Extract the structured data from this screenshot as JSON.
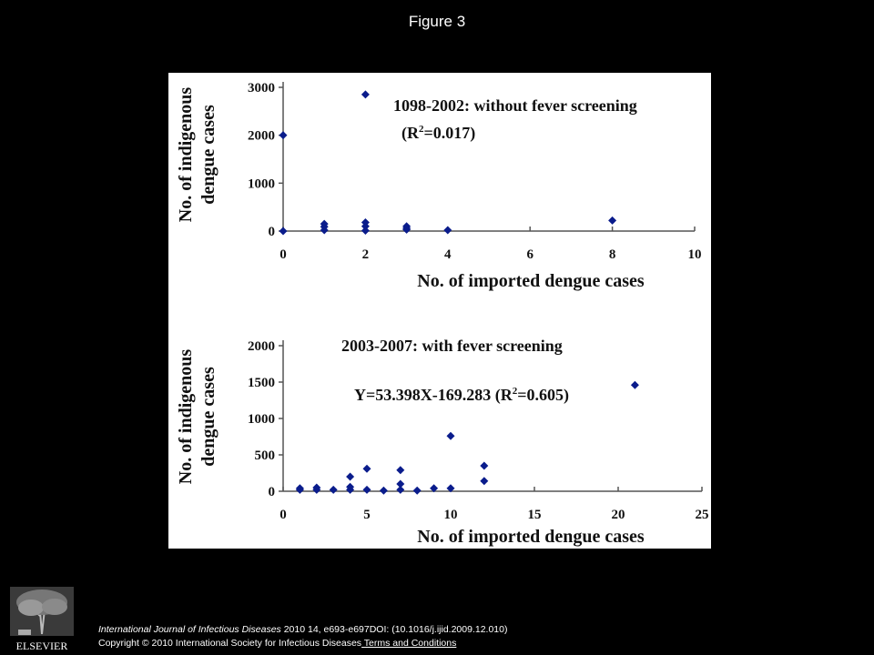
{
  "slide_title": "Figure 3",
  "citation": {
    "journal": "International Journal of Infectious Diseases",
    "details": " 2010 14, e693-e697DOI: (10.1016/j.ijid.2009.12.010)",
    "copyright": "Copyright © 2010 International Society for Infectious Diseases",
    "terms_link": " Terms and Conditions"
  },
  "publisher_logo_text": "ELSEVIER",
  "colors": {
    "background": "#000000",
    "panel": "#ffffff",
    "marker": "#0a1c8c"
  },
  "chart_data": [
    {
      "type": "scatter",
      "title": "1098-2002: without fever screening",
      "equation_prefix": "(R",
      "equation_sup": "2",
      "equation_suffix": "=0.017)",
      "xlabel": "No. of imported dengue cases",
      "ylabel_line1": "No. of indigenous",
      "ylabel_line2": "dengue cases",
      "xlim": [
        0,
        10
      ],
      "ylim": [
        0,
        3000
      ],
      "xticks": [
        0,
        2,
        4,
        6,
        8,
        10
      ],
      "yticks": [
        0,
        1000,
        2000,
        3000
      ],
      "marker": "diamond",
      "grid": false,
      "points": [
        {
          "x": 0,
          "y": 2000
        },
        {
          "x": 0,
          "y": 0
        },
        {
          "x": 1,
          "y": 150
        },
        {
          "x": 1,
          "y": 90
        },
        {
          "x": 1,
          "y": 20
        },
        {
          "x": 2,
          "y": 2850
        },
        {
          "x": 2,
          "y": 180
        },
        {
          "x": 2,
          "y": 100
        },
        {
          "x": 2,
          "y": 10
        },
        {
          "x": 3,
          "y": 100
        },
        {
          "x": 3,
          "y": 60
        },
        {
          "x": 3,
          "y": 30
        },
        {
          "x": 4,
          "y": 20
        },
        {
          "x": 8,
          "y": 220
        }
      ]
    },
    {
      "type": "scatter",
      "title": "2003-2007: with fever screening",
      "equation_prefix": "Y=53.398X-169.283 (R",
      "equation_sup": "2",
      "equation_suffix": "=0.605)",
      "xlabel": "No. of imported dengue cases",
      "ylabel_line1": "No. of indigenous",
      "ylabel_line2": "dengue cases",
      "xlim": [
        0,
        25
      ],
      "ylim": [
        0,
        2000
      ],
      "xticks": [
        0,
        5,
        10,
        15,
        20,
        25
      ],
      "yticks": [
        0,
        500,
        1000,
        1500,
        2000
      ],
      "marker": "diamond",
      "grid": false,
      "points": [
        {
          "x": 1,
          "y": 40
        },
        {
          "x": 1,
          "y": 20
        },
        {
          "x": 2,
          "y": 50
        },
        {
          "x": 2,
          "y": 20
        },
        {
          "x": 3,
          "y": 20
        },
        {
          "x": 4,
          "y": 200
        },
        {
          "x": 4,
          "y": 60
        },
        {
          "x": 4,
          "y": 20
        },
        {
          "x": 5,
          "y": 310
        },
        {
          "x": 5,
          "y": 20
        },
        {
          "x": 6,
          "y": 10
        },
        {
          "x": 7,
          "y": 290
        },
        {
          "x": 7,
          "y": 100
        },
        {
          "x": 7,
          "y": 20
        },
        {
          "x": 8,
          "y": 10
        },
        {
          "x": 9,
          "y": 40
        },
        {
          "x": 10,
          "y": 760
        },
        {
          "x": 10,
          "y": 40
        },
        {
          "x": 12,
          "y": 350
        },
        {
          "x": 12,
          "y": 140
        },
        {
          "x": 21,
          "y": 1460
        }
      ]
    }
  ]
}
